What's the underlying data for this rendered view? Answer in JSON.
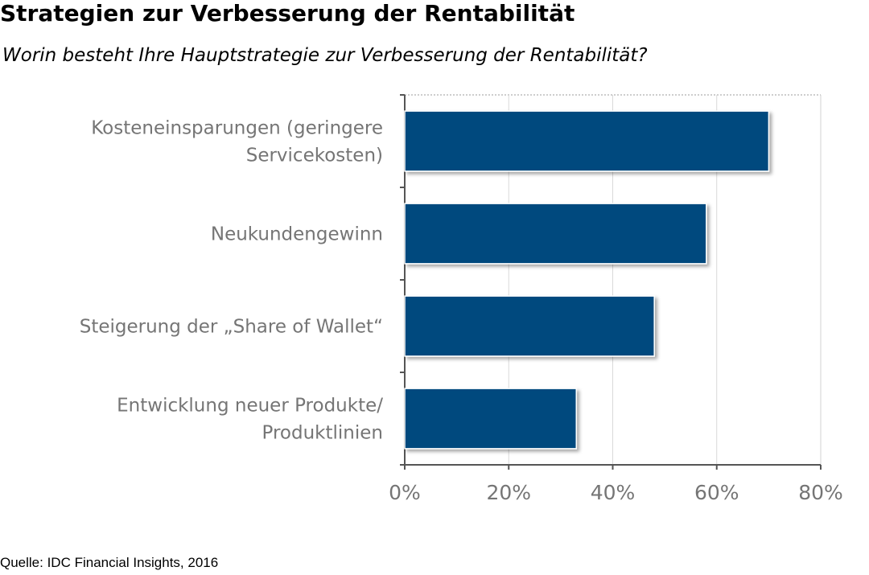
{
  "page": {
    "title": "Strategien zur Verbesserung der Rentabilität",
    "subtitle": "Worin besteht Ihre Hauptstrategie zur Verbesserung der Rentabilität?",
    "source": "Quelle: IDC Financial Insights, 2016"
  },
  "chart_data": {
    "type": "bar",
    "orientation": "horizontal",
    "categories": [
      [
        "Kosteneinsparungen (geringere",
        "Servicekosten)"
      ],
      [
        "Neukundengewinn"
      ],
      [
        "Steigerung der „Share of Wallet“"
      ],
      [
        "Entwicklung neuer Produkte/",
        "Produktlinien"
      ]
    ],
    "values": [
      70,
      58,
      48,
      33
    ],
    "xlim": [
      0,
      80
    ],
    "xticks": [
      0,
      20,
      40,
      60,
      80
    ],
    "xtick_labels": [
      "0%",
      "20%",
      "40%",
      "60%",
      "80%"
    ],
    "grid": "vertical-dotted",
    "colors": {
      "bar": "#064A7E",
      "axis": "#555555",
      "grid": "#d9d9d9",
      "label": "#757575"
    }
  }
}
